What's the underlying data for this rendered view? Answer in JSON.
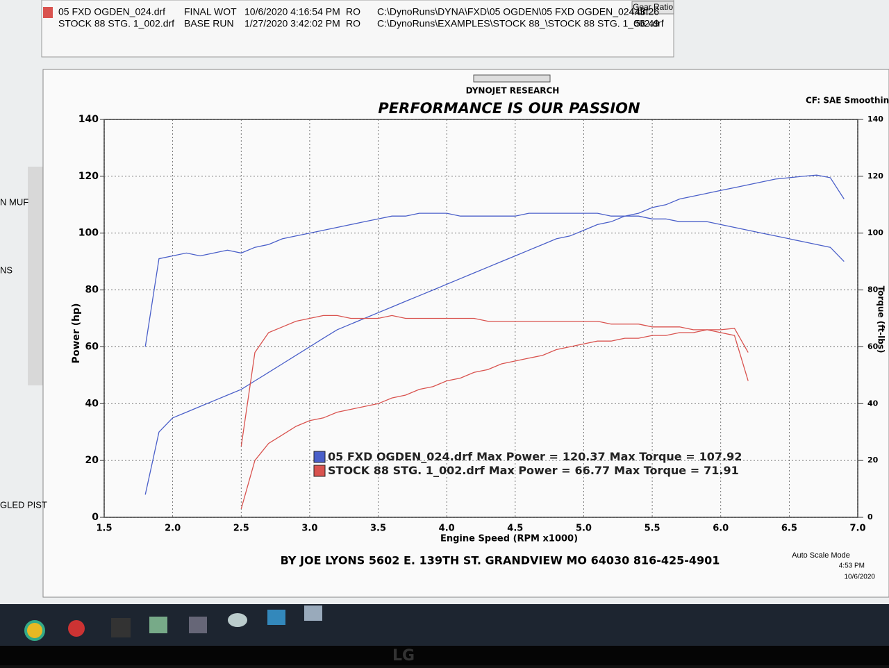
{
  "window": {
    "files": [
      {
        "name": "05 FXD OGDEN_024.drf",
        "note": "FINAL WOT",
        "date": "10/6/2020 4:16:54 PM",
        "mode": "RO",
        "path": "C:\\DynoRuns\\DYNA\\FXD\\05 OGDEN\\05 FXD OGDEN_024.drf",
        "gear_ratio": 43.26
      },
      {
        "name": "STOCK 88 STG. 1_002.drf",
        "note": "BASE RUN",
        "date": "1/27/2020 3:42:02 PM",
        "mode": "RO",
        "path": "C:\\DynoRuns\\EXAMPLES\\STOCK 88_\\STOCK 88 STG. 1_002.drf",
        "gear_ratio": 56.49
      }
    ],
    "gear_ratio_header": "Gear Ratio",
    "side_labels": [
      "N MUF",
      "NS",
      "GLED PIST"
    ],
    "company": "DYNOJET RESEARCH",
    "settings": "CF: SAE  Smoothing",
    "footer": "BY JOE LYONS  5602 E. 139TH ST. GRANDVIEW MO 64030 816-425-4901",
    "status": "Auto Scale Mode",
    "time": "4:53 PM",
    "date": "10/6/2020",
    "brand": "LG"
  },
  "chart_data": {
    "type": "line",
    "title": "PERFORMANCE IS OUR PASSION",
    "x_label": "Engine Speed (RPM x1000)",
    "y_label": "Power (hp)",
    "y2_label": "Torque (ft-lbs)",
    "xlim": [
      1.5,
      7.0
    ],
    "xticks": [
      1.5,
      {
        "value": 2,
        "label": "2.0"
      },
      2.5,
      {
        "value": 3,
        "label": "3.0"
      },
      3.5,
      {
        "value": 4,
        "label": "4.0"
      },
      4.5,
      {
        "value": 5,
        "label": "5.0"
      },
      5.5,
      {
        "value": 6,
        "label": "6.0"
      },
      6.5,
      {
        "value": 7,
        "label": "7.0"
      }
    ],
    "ylim": [
      0,
      140
    ],
    "yticks": [
      0,
      20,
      40,
      60,
      80,
      100,
      120,
      140
    ],
    "y2lim": [
      0,
      140
    ],
    "y2ticks": [
      0,
      20,
      40,
      60,
      80,
      100,
      120,
      140
    ],
    "grid": true,
    "legend_labels": [
      "Max Power =",
      "Max Torque ="
    ],
    "x": [
      1.8,
      1.9,
      2.0,
      2.1,
      2.2,
      2.3,
      2.4,
      2.5,
      2.6,
      2.7,
      2.8,
      2.9,
      3.0,
      3.1,
      3.2,
      3.3,
      3.4,
      3.5,
      3.6,
      3.7,
      3.8,
      3.9,
      4.0,
      4.1,
      4.2,
      4.3,
      4.4,
      4.5,
      4.6,
      4.7,
      4.8,
      4.9,
      5.0,
      5.1,
      5.2,
      5.3,
      5.4,
      5.5,
      5.6,
      5.7,
      5.8,
      5.9,
      6.0,
      6.1,
      6.2,
      6.3,
      6.4,
      6.5,
      6.6,
      6.7,
      6.8,
      6.9
    ],
    "series": [
      {
        "name": "05 FXD OGDEN_024.drf",
        "color": "#4a5fc9",
        "max_power": 120.37,
        "max_torque": 107.92,
        "values": [
          8,
          30,
          35,
          37,
          39,
          41,
          43,
          45,
          48,
          51,
          54,
          57,
          60,
          63,
          66,
          68,
          70,
          72,
          74,
          76,
          78,
          80,
          82,
          84,
          86,
          88,
          90,
          92,
          94,
          96,
          98,
          99,
          101,
          103,
          104,
          106,
          107,
          109,
          110,
          112,
          113,
          114,
          115,
          116,
          117,
          118,
          119,
          119.5,
          120,
          120.4,
          119.5,
          112
        ],
        "torque": [
          60,
          91,
          92,
          93,
          92,
          93,
          94,
          93,
          95,
          96,
          98,
          99,
          100,
          101,
          102,
          103,
          104,
          105,
          106,
          106,
          107,
          107,
          107,
          106,
          106,
          106,
          106,
          106,
          107,
          107,
          107,
          107,
          107,
          107,
          106,
          106,
          106,
          105,
          105,
          104,
          104,
          104,
          103,
          102,
          101,
          100,
          99,
          98,
          97,
          96,
          95,
          90
        ]
      },
      {
        "name": "STOCK 88 STG. 1_002.drf",
        "color": "#d9534f",
        "max_power": 66.77,
        "max_torque": 71.91,
        "values": [
          null,
          null,
          null,
          null,
          null,
          null,
          null,
          3,
          20,
          26,
          29,
          32,
          34,
          35,
          37,
          38,
          39,
          40,
          42,
          43,
          45,
          46,
          48,
          49,
          51,
          52,
          54,
          55,
          56,
          57,
          59,
          60,
          61,
          62,
          62,
          63,
          63,
          64,
          64,
          65,
          65,
          66,
          66,
          66.5,
          58,
          null,
          null,
          null,
          null,
          null,
          null,
          null
        ],
        "torque": [
          null,
          null,
          null,
          null,
          null,
          null,
          null,
          25,
          58,
          65,
          67,
          69,
          70,
          71,
          71,
          70,
          70,
          70,
          71,
          70,
          70,
          70,
          70,
          70,
          70,
          69,
          69,
          69,
          69,
          69,
          69,
          69,
          69,
          69,
          68,
          68,
          68,
          67,
          67,
          67,
          66,
          66,
          65,
          64,
          48,
          null,
          null,
          null,
          null,
          null,
          null,
          null
        ]
      }
    ]
  }
}
